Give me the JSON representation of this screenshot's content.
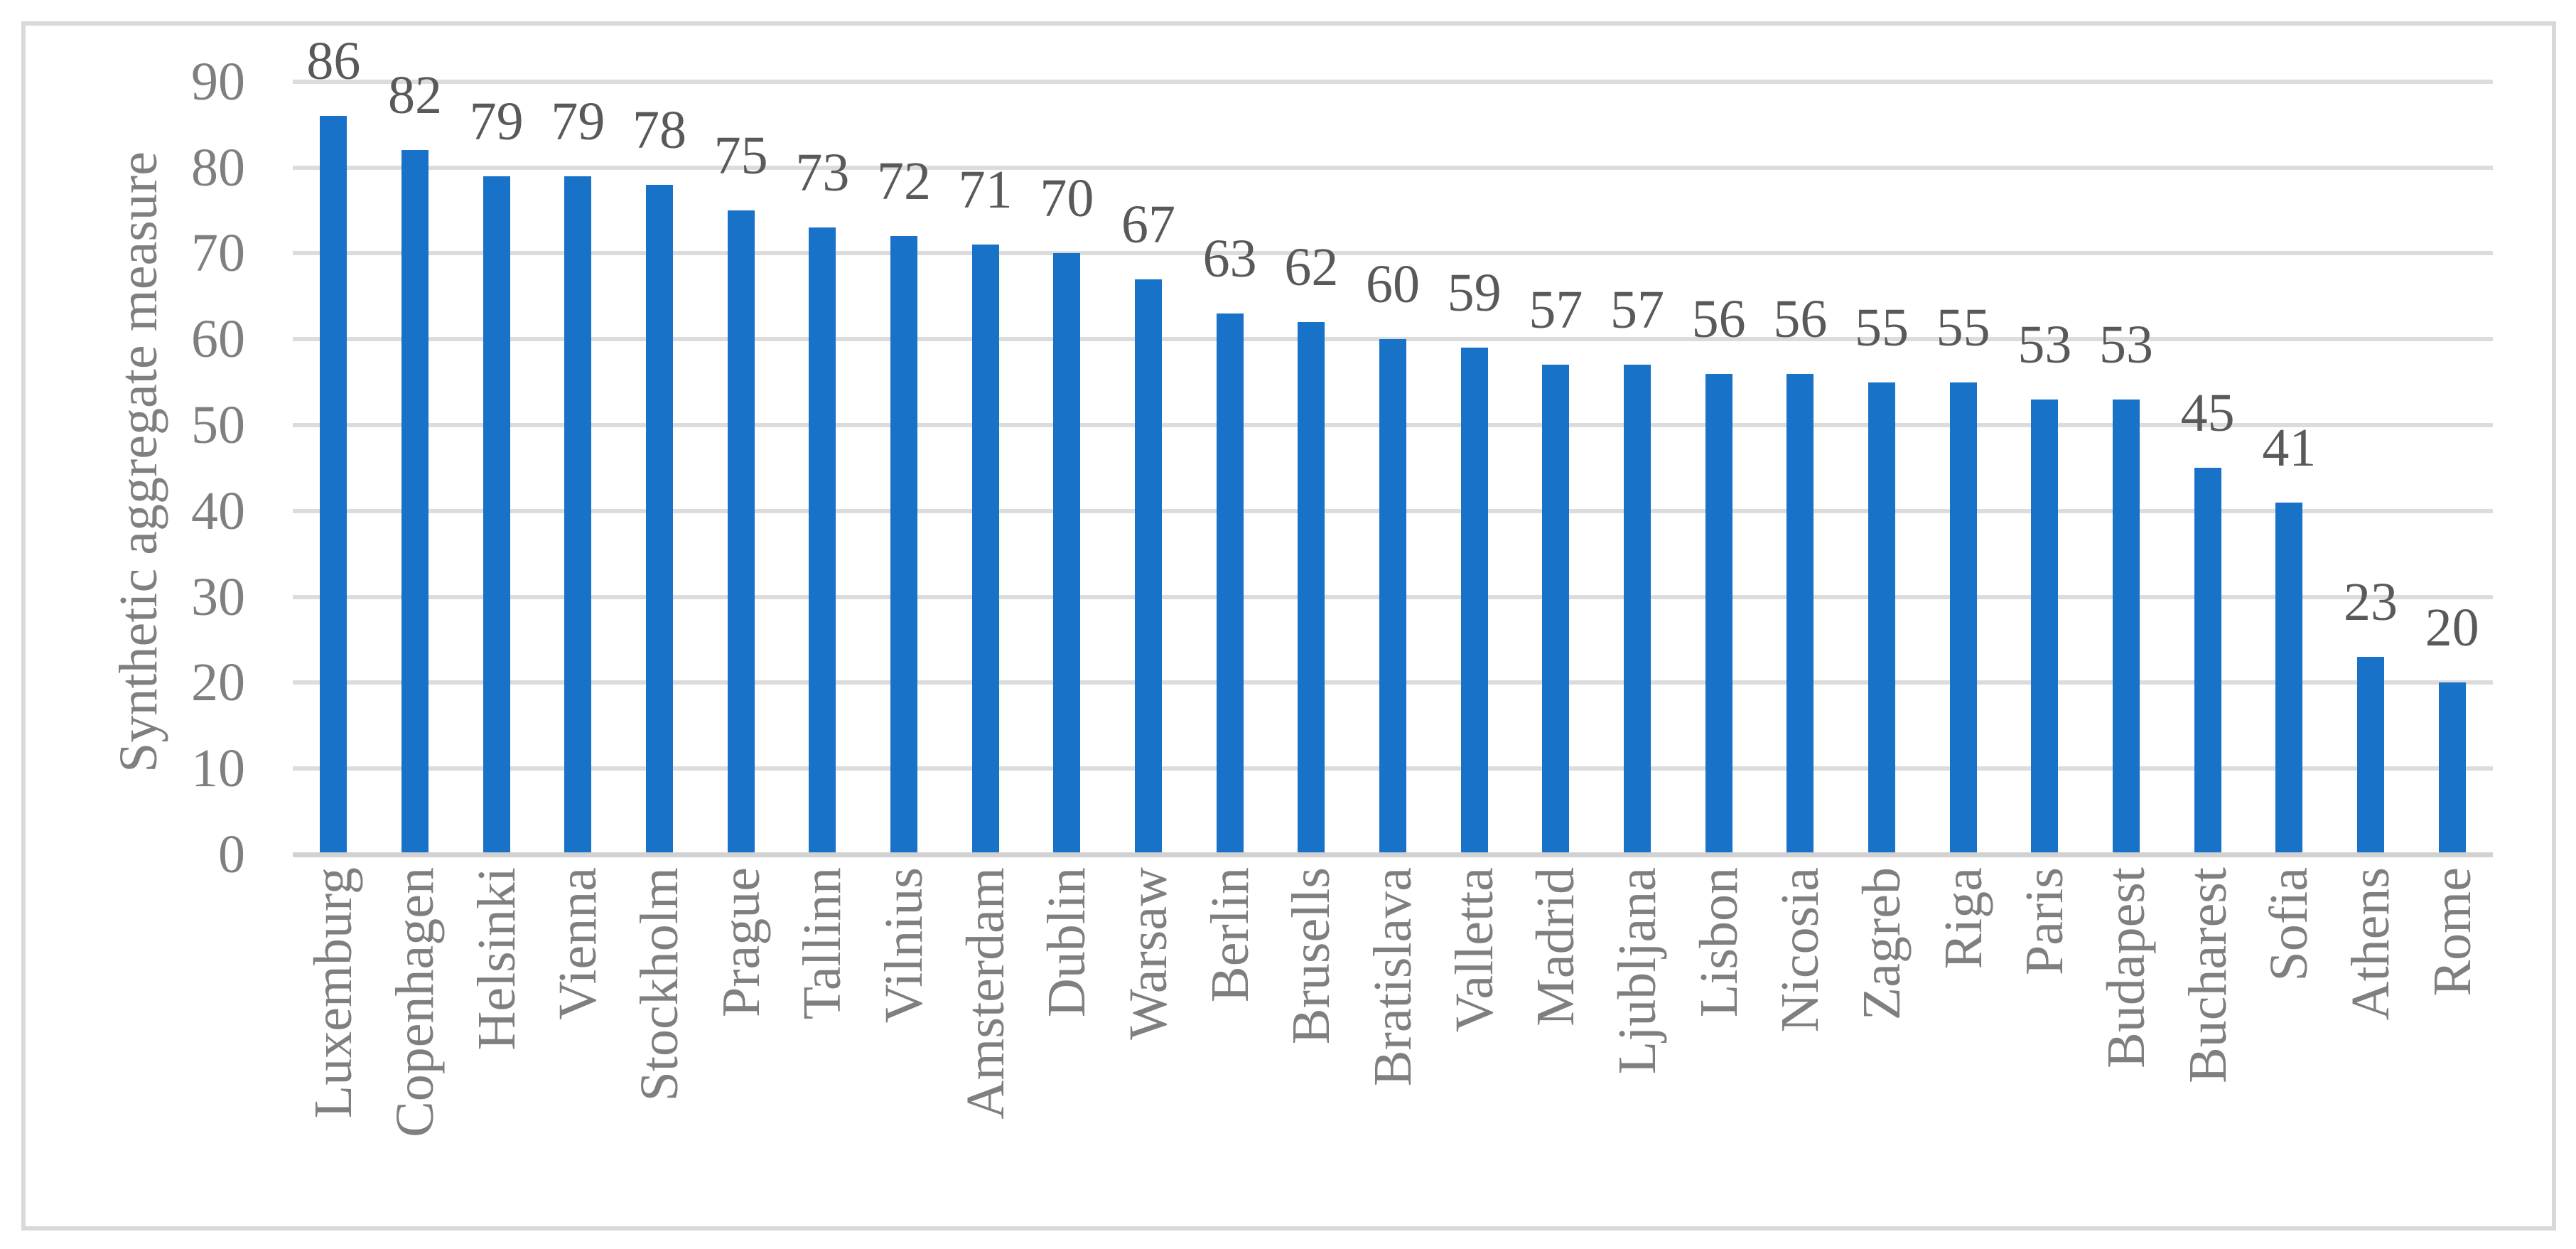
{
  "chart_data": {
    "type": "bar",
    "title": "",
    "xlabel": "",
    "ylabel": "Synthetic aggregate measure",
    "categories": [
      "Luxemburg",
      "Copenhagen",
      "Helsinki",
      "Vienna",
      "Stockholm",
      "Prague",
      "Tallinn",
      "Vilnius",
      "Amsterdam",
      "Dublin",
      "Warsaw",
      "Berlin",
      "Brusells",
      "Bratislava",
      "Valletta",
      "Madrid",
      "Ljubljana",
      "Lisbon",
      "Nicosia",
      "Zagreb",
      "Riga",
      "Paris",
      "Budapest",
      "Bucharest",
      "Sofia",
      "Athens",
      "Rome"
    ],
    "values": [
      86,
      82,
      79,
      79,
      78,
      75,
      73,
      72,
      71,
      70,
      67,
      63,
      62,
      60,
      59,
      57,
      57,
      56,
      56,
      55,
      55,
      53,
      53,
      45,
      41,
      23,
      20
    ],
    "ylim": [
      0,
      90
    ],
    "yticks": [
      0,
      10,
      20,
      30,
      40,
      50,
      60,
      70,
      80,
      90
    ],
    "grid": "horizontal",
    "legend": "none",
    "data_labels": "above-bars",
    "bar_color": "#1772C8",
    "gridline_color": "#DCDCDC",
    "axis_line_color": "#D2D2D2",
    "frame_color": "#D9D9D9",
    "value_label_color": "#595959",
    "axis_text_color": "#7F7F7F"
  }
}
